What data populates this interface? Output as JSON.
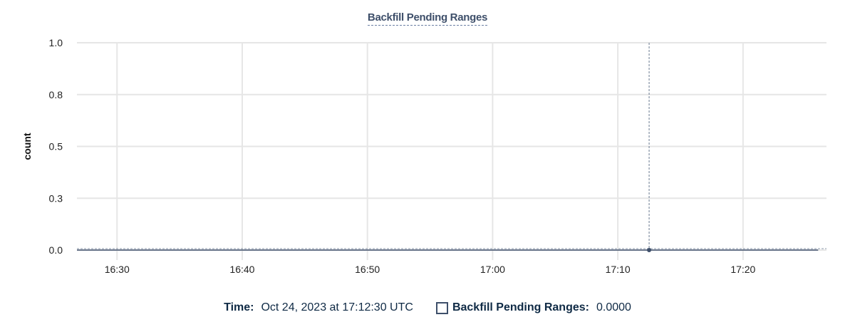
{
  "chart_data": {
    "type": "line",
    "title": "Backfill Pending Ranges",
    "ylabel": "count",
    "xlabel": "",
    "ylim": [
      0,
      1
    ],
    "xlim": [
      "16:26:48",
      "17:26:40"
    ],
    "y_ticks": [
      {
        "value": 0,
        "label": "0.0"
      },
      {
        "value": 0.25,
        "label": "0.3"
      },
      {
        "value": 0.5,
        "label": "0.5"
      },
      {
        "value": 0.75,
        "label": "0.8"
      },
      {
        "value": 1,
        "label": "1.0"
      }
    ],
    "x_ticks": [
      "16:30",
      "16:40",
      "16:50",
      "17:00",
      "17:10",
      "17:20"
    ],
    "grid": true,
    "series": [
      {
        "name": "Backfill Pending Ranges",
        "color": "#3e4f6a",
        "x": [
          "16:26:48",
          "17:12:30",
          "17:26:00"
        ],
        "values": [
          0,
          0,
          0
        ]
      }
    ],
    "hover": {
      "x": "17:12:30",
      "value": 0
    }
  },
  "legend": {
    "time_label": "Time:",
    "time_value": "Oct 24, 2023 at 17:12:30 UTC",
    "series_label": "Backfill Pending Ranges:",
    "series_value": "0.0000"
  }
}
